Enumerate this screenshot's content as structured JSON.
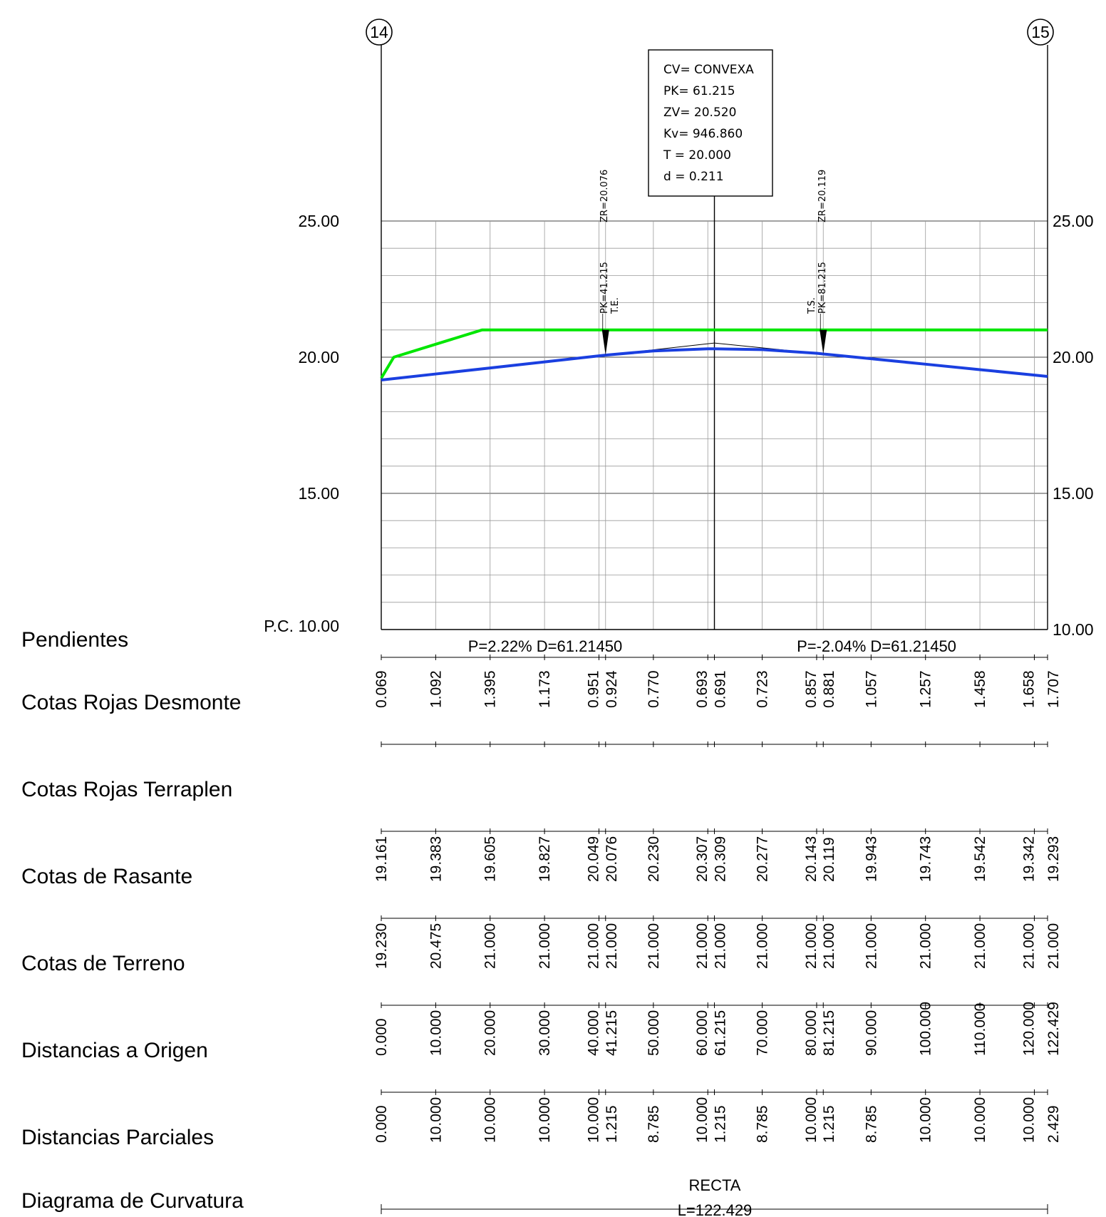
{
  "axes": {
    "left_ticks": [
      "25.00",
      "20.00",
      "15.00"
    ],
    "right_ticks": [
      "25.00",
      "20.00",
      "15.00",
      "10.00"
    ],
    "datum_label": "P.C. 10.00",
    "tick_values": [
      25,
      20,
      15,
      10
    ]
  },
  "stations": {
    "start": "14",
    "end": "15"
  },
  "curve_box": {
    "lines": [
      "CV= CONVEXA",
      "PK= 61.215",
      "ZV= 20.520",
      "Kv= 946.860",
      "T =  20.000",
      "d =  0.211"
    ]
  },
  "markers": {
    "te": {
      "pk_label": "PK=41.215",
      "zr_label": "ZR=20.076",
      "name": "T.E."
    },
    "ts": {
      "pk_label": "PK=81.215",
      "zr_label": "ZR=20.119",
      "name": "T.S."
    }
  },
  "row_labels": {
    "pendientes": "Pendientes",
    "desmonte": "Cotas Rojas Desmonte",
    "terraplen": "Cotas Rojas Terraplen",
    "rasante": "Cotas de Rasante",
    "terreno": "Cotas de Terreno",
    "origen": "Distancias a Origen",
    "parciales": "Distancias Parciales",
    "curvatura": "Diagrama de Curvatura"
  },
  "slopes": [
    "P=2.22% D=61.21450",
    "P=-2.04% D=61.21450"
  ],
  "curvature": {
    "name": "RECTA",
    "length": "L=122.429"
  },
  "chart_data": {
    "type": "line",
    "ylim": [
      10,
      25
    ],
    "xlim": [
      0,
      122.429
    ],
    "grid": true,
    "stations_x": [
      0,
      10,
      20,
      30,
      40,
      41.215,
      50,
      60,
      61.215,
      70,
      80,
      81.215,
      90,
      100,
      110,
      120,
      122.429
    ],
    "series": [
      {
        "color": "#00e600",
        "x": [
          0,
          2.3,
          18.5,
          122.429
        ],
        "y": [
          19.23,
          20.0,
          21.0,
          21.0
        ]
      },
      {
        "color": "#1a3fe0",
        "x": [
          0,
          10,
          20,
          30,
          40,
          41.215,
          50,
          60,
          61.215,
          70,
          80,
          81.215,
          90,
          100,
          110,
          120,
          122.429
        ],
        "y": [
          19.161,
          19.383,
          19.605,
          19.827,
          20.049,
          20.076,
          20.23,
          20.307,
          20.309,
          20.277,
          20.143,
          20.119,
          19.943,
          19.743,
          19.542,
          19.342,
          19.293
        ]
      }
    ],
    "tangents": {
      "x": [
        41.215,
        61.215,
        81.215
      ],
      "y": [
        20.076,
        20.52,
        20.119
      ]
    },
    "rows": {
      "desmonte": [
        "0.069",
        "1.092",
        "1.395",
        "1.173",
        "0.951",
        "0.924",
        "0.770",
        "0.693",
        "0.691",
        "0.723",
        "0.857",
        "0.881",
        "1.057",
        "1.257",
        "1.458",
        "1.658",
        "1.707"
      ],
      "rasante": [
        "19.161",
        "19.383",
        "19.605",
        "19.827",
        "20.049",
        "20.076",
        "20.230",
        "20.307",
        "20.309",
        "20.277",
        "20.143",
        "20.119",
        "19.943",
        "19.743",
        "19.542",
        "19.342",
        "19.293"
      ],
      "terreno": [
        "19.230",
        "20.475",
        "21.000",
        "21.000",
        "21.000",
        "21.000",
        "21.000",
        "21.000",
        "21.000",
        "21.000",
        "21.000",
        "21.000",
        "21.000",
        "21.000",
        "21.000",
        "21.000",
        "21.000"
      ],
      "origen": [
        "0.000",
        "10.000",
        "20.000",
        "30.000",
        "40.000",
        "41.215",
        "50.000",
        "60.000",
        "61.215",
        "70.000",
        "80.000",
        "81.215",
        "90.000",
        "100.000",
        "110.000",
        "120.000",
        "122.429"
      ],
      "parciales": [
        "0.000",
        "10.000",
        "10.000",
        "10.000",
        "10.000",
        "1.215",
        "8.785",
        "10.000",
        "1.215",
        "8.785",
        "10.000",
        "1.215",
        "8.785",
        "10.000",
        "10.000",
        "10.000",
        "2.429"
      ]
    }
  }
}
